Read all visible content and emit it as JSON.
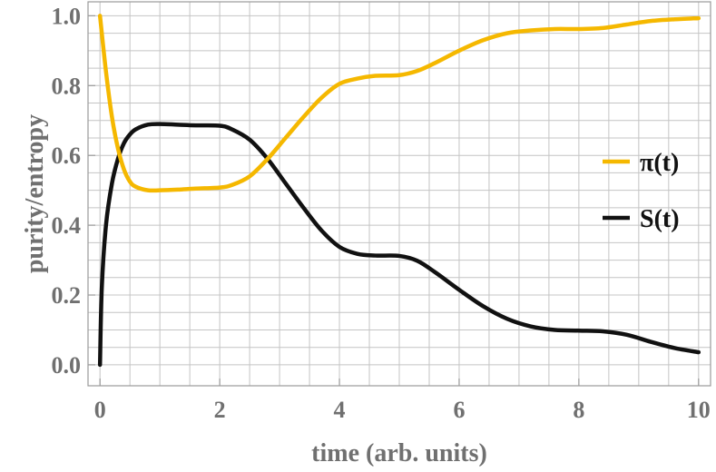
{
  "chart_data": {
    "type": "line",
    "title": "",
    "xlabel": "time (arb. units)",
    "ylabel": "purity/entropy",
    "xlim": [
      -0.2,
      10.2
    ],
    "ylim": [
      -0.06,
      1.04
    ],
    "grid": true,
    "legend_position": "right",
    "xticks": [
      0,
      2,
      4,
      6,
      8,
      10
    ],
    "yticks": [
      0.0,
      0.2,
      0.4,
      0.6,
      0.8,
      1.0
    ],
    "xtick_labels": [
      "0",
      "2",
      "4",
      "6",
      "8",
      "10"
    ],
    "ytick_labels": [
      "0.0",
      "0.2",
      "0.4",
      "0.6",
      "0.8",
      "1.0"
    ],
    "series": [
      {
        "name": "π(t)",
        "color": "#f5b800",
        "x": [
          0.0,
          0.1,
          0.2,
          0.3,
          0.4,
          0.5,
          0.6,
          0.8,
          1.0,
          1.3,
          1.6,
          2.0,
          2.2,
          2.5,
          2.8,
          3.1,
          3.4,
          3.7,
          4.0,
          4.3,
          4.6,
          5.0,
          5.3,
          5.6,
          6.0,
          6.4,
          6.8,
          7.2,
          7.6,
          8.0,
          8.4,
          8.8,
          9.2,
          9.6,
          10.0
        ],
        "y": [
          1.0,
          0.84,
          0.71,
          0.62,
          0.56,
          0.525,
          0.51,
          0.5,
          0.5,
          0.502,
          0.505,
          0.508,
          0.515,
          0.54,
          0.59,
          0.65,
          0.71,
          0.765,
          0.805,
          0.82,
          0.828,
          0.83,
          0.842,
          0.865,
          0.9,
          0.93,
          0.95,
          0.958,
          0.962,
          0.962,
          0.965,
          0.975,
          0.985,
          0.99,
          0.993
        ]
      },
      {
        "name": "S(t)",
        "color": "#111111",
        "x": [
          0.0,
          0.03,
          0.1,
          0.2,
          0.3,
          0.4,
          0.5,
          0.6,
          0.8,
          1.0,
          1.3,
          1.6,
          2.0,
          2.2,
          2.5,
          2.8,
          3.1,
          3.4,
          3.7,
          4.0,
          4.3,
          4.6,
          5.0,
          5.3,
          5.6,
          6.0,
          6.4,
          6.8,
          7.2,
          7.6,
          8.0,
          8.4,
          8.8,
          9.2,
          9.6,
          10.0
        ],
        "y": [
          0.0,
          0.22,
          0.4,
          0.52,
          0.59,
          0.635,
          0.66,
          0.675,
          0.688,
          0.69,
          0.688,
          0.686,
          0.685,
          0.675,
          0.645,
          0.59,
          0.52,
          0.45,
          0.385,
          0.338,
          0.318,
          0.313,
          0.312,
          0.298,
          0.265,
          0.215,
          0.168,
          0.132,
          0.11,
          0.1,
          0.098,
          0.096,
          0.086,
          0.066,
          0.048,
          0.036
        ]
      }
    ]
  }
}
